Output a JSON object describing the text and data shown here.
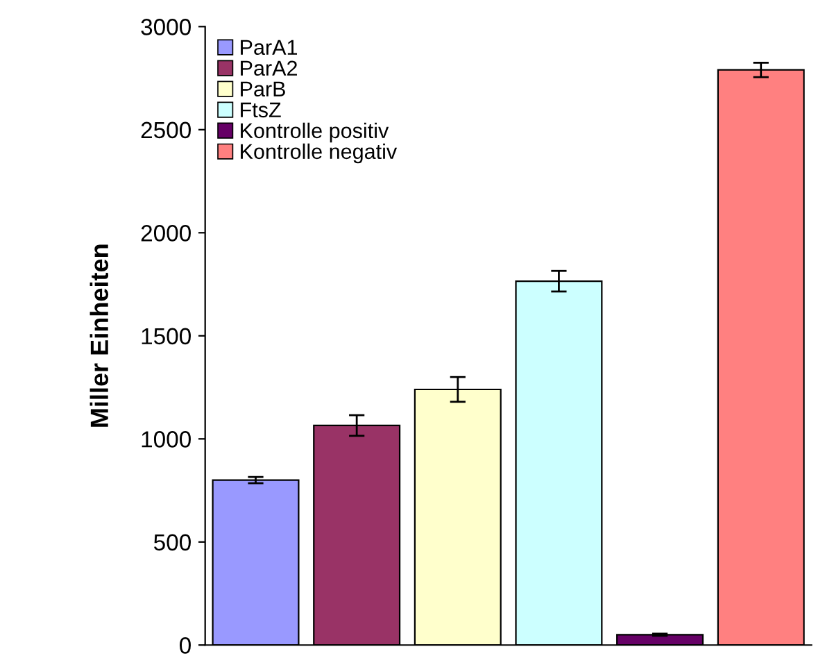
{
  "chart_data": {
    "type": "bar",
    "ylabel": "Miller Einheiten",
    "categories": [
      null,
      null,
      null,
      null,
      null,
      null
    ],
    "series": [
      {
        "name": "ParA1",
        "color": "#9999ff",
        "values": [
          800,
          null,
          null,
          null,
          null,
          null
        ],
        "errors": [
          15,
          null,
          null,
          null,
          null,
          null
        ]
      },
      {
        "name": "ParA2",
        "color": "#993366",
        "values": [
          null,
          1065,
          null,
          null,
          null,
          null
        ],
        "errors": [
          null,
          50,
          null,
          null,
          null,
          null
        ]
      },
      {
        "name": "ParB",
        "color": "#ffffcc",
        "values": [
          null,
          null,
          1240,
          null,
          null,
          null
        ],
        "errors": [
          null,
          null,
          60,
          null,
          null,
          null
        ]
      },
      {
        "name": "FtsZ",
        "color": "#ccffff",
        "values": [
          null,
          null,
          null,
          1765,
          null,
          null
        ],
        "errors": [
          null,
          null,
          null,
          50,
          null,
          null
        ]
      },
      {
        "name": "Kontrolle positiv",
        "color": "#660066",
        "values": [
          null,
          null,
          null,
          null,
          50,
          null
        ],
        "errors": [
          null,
          null,
          null,
          null,
          5,
          null
        ]
      },
      {
        "name": "Kontrolle negativ",
        "color": "#ff8080",
        "values": [
          null,
          null,
          null,
          null,
          null,
          2790
        ],
        "errors": [
          null,
          null,
          null,
          null,
          null,
          35
        ]
      }
    ],
    "ylim": [
      0,
      3000
    ],
    "yticks": [
      0,
      500,
      1000,
      1500,
      2000,
      2500,
      3000
    ],
    "grid": false,
    "legend": "top left"
  }
}
